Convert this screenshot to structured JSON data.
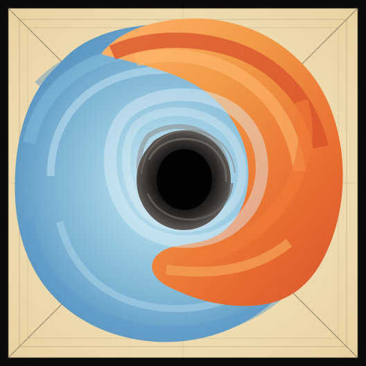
{
  "image": {
    "subject": "",
    "palette": {
      "frame": "#0b0b0b",
      "paper": "#f1e1b8",
      "paper_shadow": "#e8d2a2",
      "line": "#4c4438",
      "blue_deep": "#5d9fc7",
      "blue_mid": "#78b5d8",
      "blue_light": "#a7d4ea",
      "orange_light": "#f5a55a",
      "orange": "#ec8b3c",
      "red_orange": "#dd5a2b",
      "vortex_dark": "#171515"
    }
  },
  "markers": {
    "top": "",
    "left": "",
    "right": "",
    "bottom": ""
  }
}
